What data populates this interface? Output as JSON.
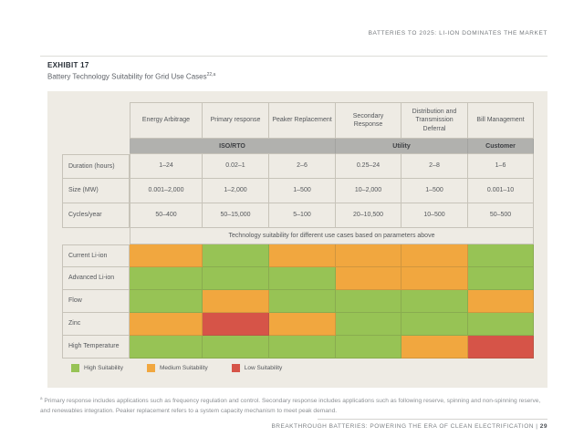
{
  "page": {
    "running_head": "BATTERIES TO 2025: LI-ION DOMINATES THE MARKET",
    "footer_text": "BREAKTHROUGH BATTERIES: POWERING THE ERA OF CLEAN ELECTRIFICATION |",
    "footer_page": "29"
  },
  "exhibit": {
    "label": "EXHIBIT 17",
    "title": "Battery Technology Suitability for Grid Use Cases",
    "title_superscript": "22,a"
  },
  "table": {
    "columns": [
      "Energy Arbitrage",
      "Primary response",
      "Peaker Replacement",
      "Secondary Response",
      "Distribution and Transmission Deferral",
      "Bill Management"
    ],
    "groups": [
      {
        "label": "ISO/RTO",
        "span": 3
      },
      {
        "label": "Utility",
        "span": 2
      },
      {
        "label": "Customer",
        "span": 1
      }
    ],
    "parameters": [
      {
        "label": "Duration (hours)",
        "values": [
          "1–24",
          "0.02–1",
          "2–6",
          "0.25–24",
          "2–8",
          "1–6"
        ]
      },
      {
        "label": "Size (MW)",
        "values": [
          "0.001–2,000",
          "1–2,000",
          "1–500",
          "10–2,000",
          "1–500",
          "0.001–10"
        ]
      },
      {
        "label": "Cycles/year",
        "values": [
          "50–400",
          "50–15,000",
          "5–100",
          "20–10,500",
          "10–500",
          "50–500"
        ]
      }
    ],
    "suitability_note": "Technology suitability for different use cases based on parameters above",
    "technologies": [
      {
        "label": "Current Li-ion",
        "suitability": [
          "medium",
          "high",
          "medium",
          "medium",
          "medium",
          "high"
        ]
      },
      {
        "label": "Advanced Li-ion",
        "suitability": [
          "high",
          "high",
          "high",
          "medium",
          "medium",
          "high"
        ]
      },
      {
        "label": "Flow",
        "suitability": [
          "high",
          "medium",
          "high",
          "high",
          "high",
          "medium"
        ]
      },
      {
        "label": "Zinc",
        "suitability": [
          "medium",
          "low",
          "medium",
          "high",
          "high",
          "high"
        ]
      },
      {
        "label": "High Temperature",
        "suitability": [
          "high",
          "high",
          "high",
          "high",
          "medium",
          "low"
        ]
      }
    ],
    "legend": [
      {
        "label": "High Suitability",
        "level": "high"
      },
      {
        "label": "Medium Suitability",
        "level": "medium"
      },
      {
        "label": "Low Suitability",
        "level": "low"
      }
    ]
  },
  "colors": {
    "high": "#97c355",
    "medium": "#f1a73f",
    "low": "#d65448"
  },
  "footnote": {
    "marker": "a",
    "text": "Primary response includes applications such as frequency regulation and control. Secondary response includes applications such as following reserve, spinning and non-spinning reserve, and renewables integration. Peaker replacement refers to a system capacity mechanism to meet peak demand."
  }
}
